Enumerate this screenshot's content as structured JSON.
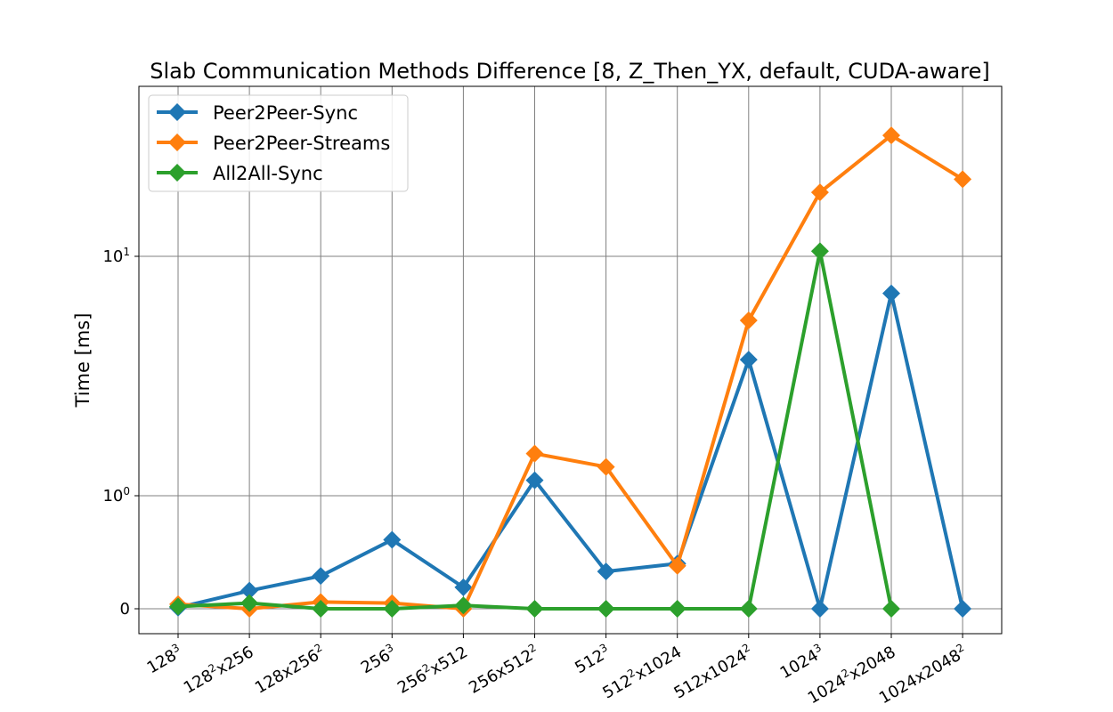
{
  "chart_data": {
    "type": "line",
    "title": "Slab Communication Methods Difference [8, Z_Then_YX, default, CUDA-aware]",
    "xlabel": "",
    "ylabel": "Time [ms]",
    "yscale": "symlog",
    "y_ticks": [
      {
        "value": 0,
        "base": "0",
        "exp": ""
      },
      {
        "value": 1,
        "base": "10",
        "exp": "0"
      },
      {
        "value": 10,
        "base": "10",
        "exp": "1"
      }
    ],
    "categories": [
      {
        "base": "128",
        "exp": "3",
        "tail": ""
      },
      {
        "base": "128",
        "exp": "2",
        "tail": "x256"
      },
      {
        "base": "128x256",
        "exp": "2",
        "tail": ""
      },
      {
        "base": "256",
        "exp": "3",
        "tail": ""
      },
      {
        "base": "256",
        "exp": "2",
        "tail": "x512"
      },
      {
        "base": "256x512",
        "exp": "2",
        "tail": ""
      },
      {
        "base": "512",
        "exp": "3",
        "tail": ""
      },
      {
        "base": "512",
        "exp": "2",
        "tail": "x1024"
      },
      {
        "base": "512x1024",
        "exp": "2",
        "tail": ""
      },
      {
        "base": "1024",
        "exp": "3",
        "tail": ""
      },
      {
        "base": "1024",
        "exp": "2",
        "tail": "x2048"
      },
      {
        "base": "1024x2048",
        "exp": "2",
        "tail": ""
      }
    ],
    "series": [
      {
        "name": "Peer2Peer-Sync",
        "color": "#1f77b4",
        "values": [
          0.01,
          0.16,
          0.29,
          0.61,
          0.19,
          1.16,
          0.33,
          0.4,
          3.7,
          0,
          7,
          0
        ]
      },
      {
        "name": "Peer2Peer-Streams",
        "color": "#ff7f0e",
        "values": [
          0.04,
          0.0,
          0.06,
          0.05,
          0.0,
          1.5,
          1.32,
          0.38,
          5.4,
          18.5,
          32,
          21
        ]
      },
      {
        "name": "All2All-Sync",
        "color": "#2ca02c",
        "values": [
          0.02,
          0.05,
          0.0,
          0.0,
          0.03,
          0.0,
          0.0,
          0.0,
          0.0,
          10.5,
          0.0,
          null
        ]
      }
    ],
    "grid": true,
    "legend_position": "upper left"
  }
}
